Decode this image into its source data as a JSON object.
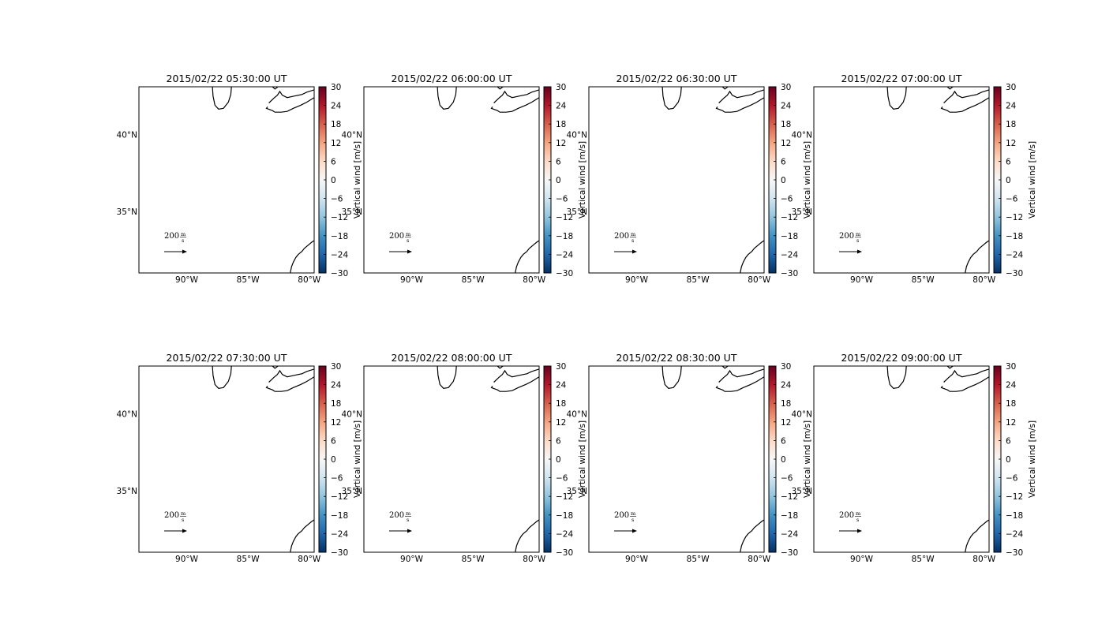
{
  "chart_data": {
    "type": "map-grid",
    "panels": [
      {
        "title": "2015/02/22 05:30:00 UT"
      },
      {
        "title": "2015/02/22 06:00:00 UT"
      },
      {
        "title": "2015/02/22 06:30:00 UT"
      },
      {
        "title": "2015/02/22 07:00:00 UT"
      },
      {
        "title": "2015/02/22 07:30:00 UT"
      },
      {
        "title": "2015/02/22 08:00:00 UT"
      },
      {
        "title": "2015/02/22 08:30:00 UT"
      },
      {
        "title": "2015/02/22 09:00:00 UT"
      }
    ],
    "layout": {
      "rows": 2,
      "cols": 4
    },
    "map": {
      "lon_range": [
        -93.9,
        -79.6
      ],
      "lat_range": [
        31.0,
        43.1
      ],
      "lon_ticks": [
        {
          "value": -90,
          "label": "90°W"
        },
        {
          "value": -85,
          "label": "85°W"
        },
        {
          "value": -80,
          "label": "80°W"
        }
      ],
      "lat_ticks": [
        {
          "value": 40,
          "label": "40°N"
        },
        {
          "value": 35,
          "label": "35°N"
        }
      ]
    },
    "colorbar": {
      "label": "Vertical wind [m/s]",
      "cmap": "RdBu_r",
      "range": [
        -30,
        30
      ],
      "ticks": [
        30,
        24,
        18,
        12,
        6,
        0,
        -6,
        -12,
        -18,
        -24,
        -30
      ],
      "tick_labels": [
        "30",
        "24",
        "18",
        "12",
        "6",
        "0",
        "−6",
        "−12",
        "−18",
        "−24",
        "−30"
      ],
      "colors": [
        "#053061",
        "#2166ac",
        "#4393c3",
        "#92c5de",
        "#d1e5f0",
        "#f7f7f7",
        "#fddbc7",
        "#f4a582",
        "#d6604d",
        "#b2182b",
        "#67001f"
      ]
    },
    "quiverkey": {
      "value": "200",
      "unit_num": "m",
      "unit_den": "s"
    }
  }
}
